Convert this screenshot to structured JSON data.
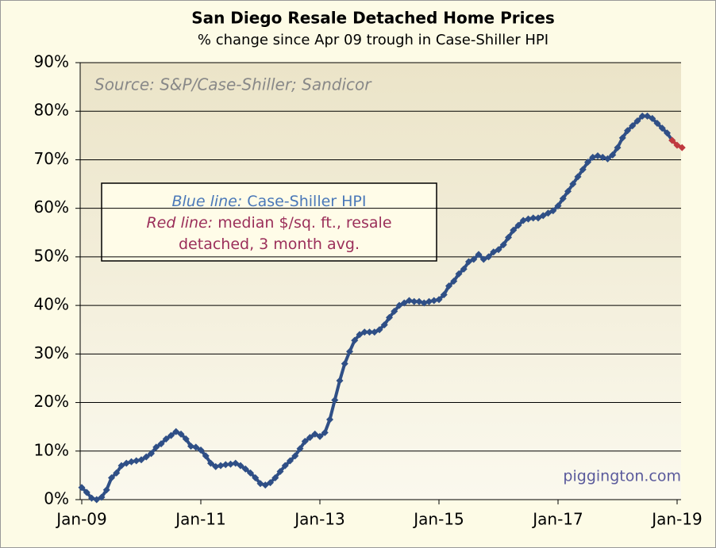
{
  "chart_data": {
    "type": "line",
    "title": "San Diego Resale Detached Home Prices",
    "subtitle": "% change since Apr 09 trough in Case-Shiller HPI",
    "source": "Source: S&P/Case-Shiller; Sandicor",
    "watermark": "piggington.com",
    "legend_box": [
      [
        {
          "text": "Blue line:",
          "italic": true,
          "color": "#4a78b8"
        },
        {
          "text": " Case-Shiller HPI",
          "italic": false,
          "color": "#4a78b8"
        }
      ],
      [
        {
          "text": "Red line:",
          "italic": true,
          "color": "#9b2f5a"
        },
        {
          "text": " median $/sq. ft., resale",
          "italic": false,
          "color": "#9b2f5a"
        }
      ],
      [
        {
          "text": "detached, 3 month avg.",
          "italic": false,
          "color": "#9b2f5a"
        }
      ]
    ],
    "categories": [
      "Jan-09",
      null,
      null,
      null,
      null,
      null,
      null,
      null,
      null,
      null,
      null,
      null,
      null,
      null,
      null,
      null,
      null,
      null,
      null,
      null,
      null,
      null,
      null,
      null,
      "Jan-11",
      null,
      null,
      null,
      null,
      null,
      null,
      null,
      null,
      null,
      null,
      null,
      null,
      null,
      null,
      null,
      null,
      null,
      null,
      null,
      null,
      null,
      null,
      null,
      "Jan-13",
      null,
      null,
      null,
      null,
      null,
      null,
      null,
      null,
      null,
      null,
      null,
      null,
      null,
      null,
      null,
      null,
      null,
      null,
      null,
      null,
      null,
      null,
      null,
      "Jan-15",
      null,
      null,
      null,
      null,
      null,
      null,
      null,
      null,
      null,
      null,
      null,
      null,
      null,
      null,
      null,
      null,
      null,
      null,
      null,
      null,
      null,
      null,
      null,
      "Jan-17",
      null,
      null,
      null,
      null,
      null,
      null,
      null,
      null,
      null,
      null,
      null,
      null,
      null,
      null,
      null,
      null,
      null,
      null,
      null,
      null,
      null,
      null,
      null,
      "Jan-19",
      null
    ],
    "series": [
      {
        "name": "Case-Shiller HPI",
        "color": "#2f4f86",
        "values": [
          2.5,
          1.5,
          0.3,
          0,
          0.5,
          2,
          4.5,
          5.5,
          7,
          7.5,
          7.8,
          8,
          8.2,
          8.8,
          9.5,
          10.8,
          11.5,
          12.5,
          13.2,
          14,
          13.5,
          12.5,
          11,
          10.8,
          10.2,
          9,
          7.5,
          6.8,
          7,
          7.2,
          7.3,
          7.5,
          7,
          6.3,
          5.5,
          4.5,
          3.3,
          3,
          3.5,
          4.5,
          5.8,
          7,
          8,
          9,
          10.5,
          12,
          12.8,
          13.5,
          13,
          13.8,
          16.5,
          20.5,
          24.5,
          28,
          30.5,
          32.8,
          34,
          34.5,
          34.5,
          34.5,
          35,
          36,
          37.5,
          38.8,
          40,
          40.5,
          41,
          40.8,
          40.8,
          40.5,
          40.8,
          41,
          41.2,
          42.2,
          44,
          45,
          46.5,
          47.5,
          49,
          49.5,
          50.5,
          49.5,
          50,
          51,
          51.5,
          52.5,
          54,
          55.5,
          56.5,
          57.5,
          57.8,
          58,
          58,
          58.5,
          59,
          59.5,
          60.5,
          62,
          63.5,
          65,
          66.5,
          68,
          69.5,
          70.5,
          70.8,
          70.5,
          70.2,
          71,
          72.5,
          74.5,
          76,
          77,
          78,
          79,
          79,
          78.5,
          77.5,
          76.5,
          75.5,
          74,
          null,
          null
        ]
      },
      {
        "name": "median $/sq. ft., resale detached, 3 month avg.",
        "color": "#c0393f",
        "values": [
          null,
          null,
          null,
          null,
          null,
          null,
          null,
          null,
          null,
          null,
          null,
          null,
          null,
          null,
          null,
          null,
          null,
          null,
          null,
          null,
          null,
          null,
          null,
          null,
          null,
          null,
          null,
          null,
          null,
          null,
          null,
          null,
          null,
          null,
          null,
          null,
          null,
          null,
          null,
          null,
          null,
          null,
          null,
          null,
          null,
          null,
          null,
          null,
          null,
          null,
          null,
          null,
          null,
          null,
          null,
          null,
          null,
          null,
          null,
          null,
          null,
          null,
          null,
          null,
          null,
          null,
          null,
          null,
          null,
          null,
          null,
          null,
          null,
          null,
          null,
          null,
          null,
          null,
          null,
          null,
          null,
          null,
          null,
          null,
          null,
          null,
          null,
          null,
          null,
          null,
          null,
          null,
          null,
          null,
          null,
          null,
          null,
          null,
          null,
          null,
          null,
          null,
          null,
          null,
          null,
          null,
          null,
          null,
          null,
          null,
          null,
          null,
          null,
          null,
          null,
          null,
          null,
          null,
          null,
          74,
          73,
          72.5
        ]
      }
    ],
    "ylim": [
      0,
      90
    ],
    "yticks": [
      {
        "value": 0,
        "label": "0%"
      },
      {
        "value": 10,
        "label": "10%"
      },
      {
        "value": 20,
        "label": "20%"
      },
      {
        "value": 30,
        "label": "30%"
      },
      {
        "value": 40,
        "label": "40%"
      },
      {
        "value": 50,
        "label": "50%"
      },
      {
        "value": 60,
        "label": "60%"
      },
      {
        "value": 70,
        "label": "70%"
      },
      {
        "value": 80,
        "label": "80%"
      },
      {
        "value": 90,
        "label": "90%"
      }
    ],
    "grid": true
  }
}
